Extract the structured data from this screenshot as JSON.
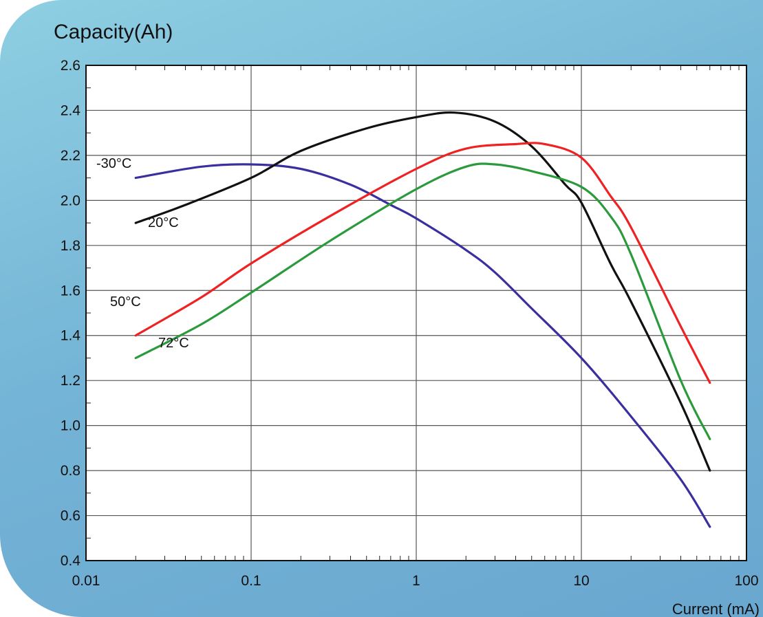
{
  "chart_data": {
    "type": "line",
    "ylabel": "Capacity(Ah)",
    "xlabel": "Current (mA)",
    "xscale": "log",
    "xlim": [
      0.01,
      100
    ],
    "ylim": [
      0.4,
      2.6
    ],
    "grid": true,
    "xticks": [
      "0.01",
      "0.1",
      "1",
      "10",
      "100"
    ],
    "yticks": [
      "0.4",
      "0.6",
      "0.8",
      "1.0",
      "1.2",
      "1.4",
      "1.6",
      "1.8",
      "2.0",
      "2.2",
      "2.4",
      "2.6"
    ],
    "series": [
      {
        "name": "-30°C",
        "color": "#3a2f9e",
        "points": [
          [
            0.02,
            2.1
          ],
          [
            0.05,
            2.15
          ],
          [
            0.1,
            2.16
          ],
          [
            0.2,
            2.14
          ],
          [
            0.4,
            2.07
          ],
          [
            0.7,
            1.98
          ],
          [
            1,
            1.92
          ],
          [
            2,
            1.78
          ],
          [
            3,
            1.68
          ],
          [
            5,
            1.52
          ],
          [
            10,
            1.3
          ],
          [
            20,
            1.04
          ],
          [
            40,
            0.76
          ],
          [
            60,
            0.55
          ]
        ]
      },
      {
        "name": "20°C",
        "color": "#111111",
        "points": [
          [
            0.02,
            1.9
          ],
          [
            0.04,
            1.98
          ],
          [
            0.1,
            2.1
          ],
          [
            0.2,
            2.22
          ],
          [
            0.5,
            2.32
          ],
          [
            1,
            2.37
          ],
          [
            1.7,
            2.39
          ],
          [
            3,
            2.35
          ],
          [
            5,
            2.24
          ],
          [
            8,
            2.07
          ],
          [
            10,
            1.99
          ],
          [
            15,
            1.72
          ],
          [
            20,
            1.55
          ],
          [
            40,
            1.1
          ],
          [
            60,
            0.8
          ]
        ]
      },
      {
        "name": "50°C",
        "color": "#ee2222",
        "points": [
          [
            0.02,
            1.4
          ],
          [
            0.05,
            1.57
          ],
          [
            0.1,
            1.72
          ],
          [
            0.3,
            1.93
          ],
          [
            1,
            2.14
          ],
          [
            2,
            2.23
          ],
          [
            4,
            2.25
          ],
          [
            6,
            2.25
          ],
          [
            10,
            2.19
          ],
          [
            15,
            2.02
          ],
          [
            20,
            1.88
          ],
          [
            40,
            1.44
          ],
          [
            60,
            1.19
          ]
        ]
      },
      {
        "name": "72°C",
        "color": "#2a9a3c",
        "points": [
          [
            0.02,
            1.3
          ],
          [
            0.05,
            1.45
          ],
          [
            0.1,
            1.59
          ],
          [
            0.3,
            1.82
          ],
          [
            1,
            2.05
          ],
          [
            2,
            2.15
          ],
          [
            3,
            2.16
          ],
          [
            5,
            2.13
          ],
          [
            10,
            2.06
          ],
          [
            15,
            1.93
          ],
          [
            20,
            1.76
          ],
          [
            40,
            1.2
          ],
          [
            60,
            0.94
          ]
        ]
      }
    ]
  }
}
